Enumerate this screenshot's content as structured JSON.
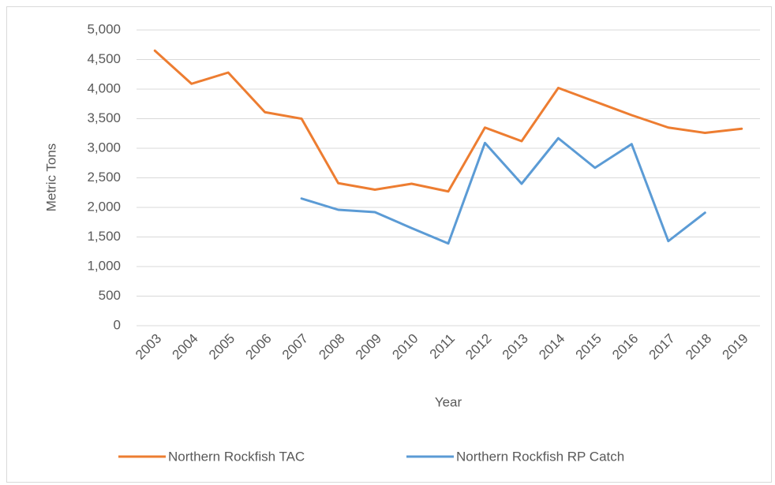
{
  "chart_data": {
    "type": "line",
    "x_label": "Year",
    "y_label": "Metric Tons",
    "categories": [
      "2003",
      "2004",
      "2005",
      "2006",
      "2007",
      "2008",
      "2009",
      "2010",
      "2011",
      "2012",
      "2013",
      "2014",
      "2015",
      "2016",
      "2017",
      "2018",
      "2019"
    ],
    "series": [
      {
        "name": "Northern Rockfish TAC",
        "color": "#ed7d31",
        "values": [
          4650,
          4090,
          4280,
          3610,
          3500,
          2410,
          2300,
          2400,
          2270,
          3350,
          3120,
          4020,
          3790,
          3560,
          3350,
          3260,
          3330
        ]
      },
      {
        "name": "Northern Rockfish RP Catch",
        "color": "#5b9bd5",
        "values": [
          null,
          null,
          null,
          null,
          2150,
          1960,
          1920,
          1650,
          1390,
          3090,
          2400,
          3170,
          2670,
          3070,
          1430,
          1910,
          null
        ]
      }
    ],
    "ylim": [
      0,
      5000
    ],
    "yticks": [
      0,
      500,
      {
        "value": 1000,
        "label": "1,000"
      },
      {
        "value": 1500,
        "label": "1,500"
      },
      {
        "value": 2000,
        "label": "2,000"
      },
      {
        "value": 2500,
        "label": "2,500"
      },
      {
        "value": 3000,
        "label": "3,000"
      },
      {
        "value": 3500,
        "label": "3,500"
      },
      {
        "value": 4000,
        "label": "4,000"
      },
      {
        "value": 4500,
        "label": "4,500"
      },
      {
        "value": 5000,
        "label": "5,000"
      }
    ],
    "grid": true,
    "legend": "bottom"
  }
}
